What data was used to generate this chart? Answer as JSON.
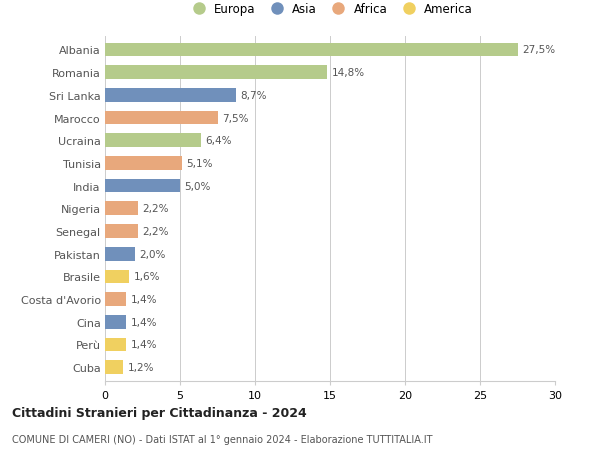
{
  "countries": [
    "Albania",
    "Romania",
    "Sri Lanka",
    "Marocco",
    "Ucraina",
    "Tunisia",
    "India",
    "Nigeria",
    "Senegal",
    "Pakistan",
    "Brasile",
    "Costa d'Avorio",
    "Cina",
    "Perù",
    "Cuba"
  ],
  "values": [
    27.5,
    14.8,
    8.7,
    7.5,
    6.4,
    5.1,
    5.0,
    2.2,
    2.2,
    2.0,
    1.6,
    1.4,
    1.4,
    1.4,
    1.2
  ],
  "labels": [
    "27,5%",
    "14,8%",
    "8,7%",
    "7,5%",
    "6,4%",
    "5,1%",
    "5,0%",
    "2,2%",
    "2,2%",
    "2,0%",
    "1,6%",
    "1,4%",
    "1,4%",
    "1,4%",
    "1,2%"
  ],
  "continents": [
    "Europa",
    "Europa",
    "Asia",
    "Africa",
    "Europa",
    "Africa",
    "Asia",
    "Africa",
    "Africa",
    "Asia",
    "America",
    "Africa",
    "Asia",
    "America",
    "America"
  ],
  "colors": {
    "Europa": "#b5cb8b",
    "Asia": "#7090bb",
    "Africa": "#e8a87c",
    "America": "#f0d060"
  },
  "legend_order": [
    "Europa",
    "Asia",
    "Africa",
    "America"
  ],
  "title": "Cittadini Stranieri per Cittadinanza - 2024",
  "subtitle": "COMUNE DI CAMERI (NO) - Dati ISTAT al 1° gennaio 2024 - Elaborazione TUTTITALIA.IT",
  "xlim": [
    0,
    30
  ],
  "xticks": [
    0,
    5,
    10,
    15,
    20,
    25,
    30
  ],
  "bg_color": "#ffffff",
  "grid_color": "#cccccc"
}
